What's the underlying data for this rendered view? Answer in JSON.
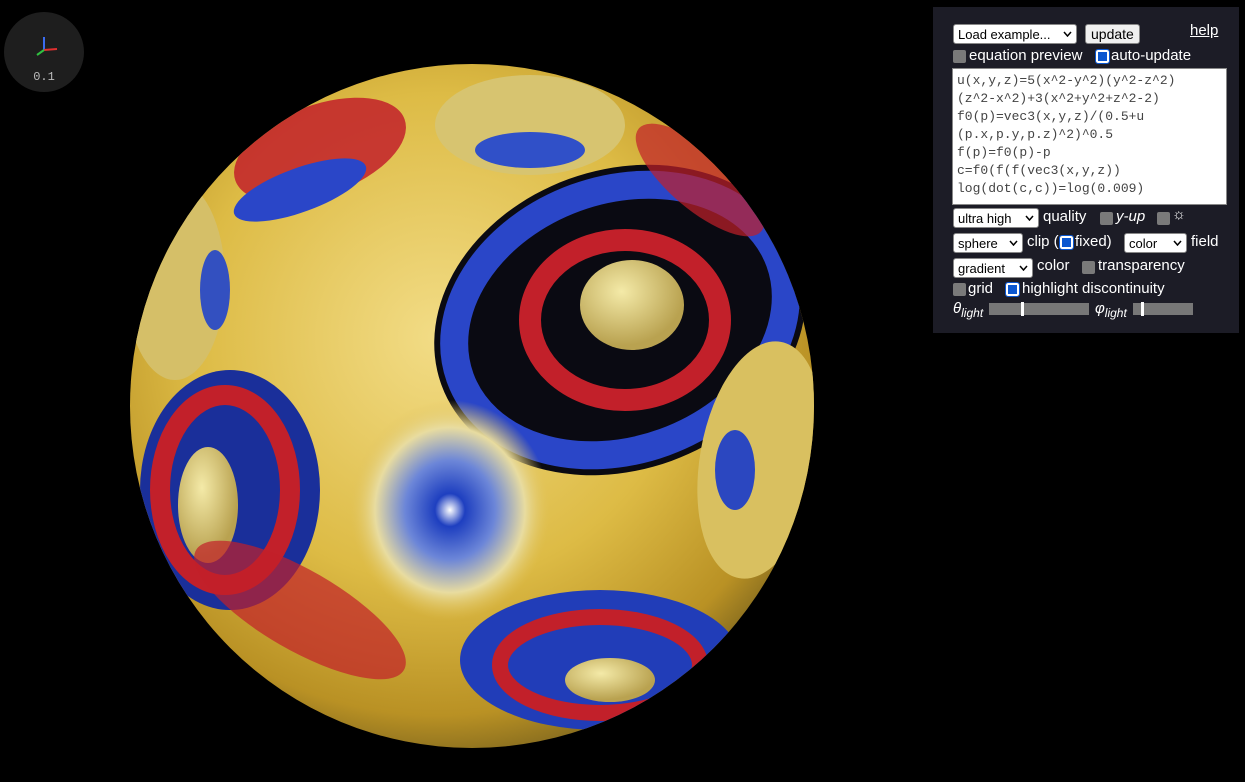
{
  "axis_widget": {
    "scale_label": "0.1"
  },
  "panel": {
    "example_select": "Load example...",
    "update_button": "update",
    "help_link": "help",
    "equation_preview": {
      "label": "equation preview",
      "checked": false
    },
    "auto_update": {
      "label": "auto-update",
      "checked": true
    },
    "equation_lines": [
      "u(x,y,z)=5(x^2-y^2)(y^2-z^2)",
      "(z^2-x^2)+3(x^2+y^2+z^2-2)",
      "f0(p)=vec3(x,y,z)/(0.5+u",
      "(p.x,p.y,p.z)^2)^0.5",
      "f(p)=f0(p)-p",
      "c=f0(f(f(vec3(x,y,z))",
      "log(dot(c,c))=log(0.009)"
    ],
    "quality": {
      "select": "ultra high",
      "label": "quality"
    },
    "y_up": {
      "label": "y-up",
      "checked": false
    },
    "light_toggle": {
      "label": "☼",
      "checked": false
    },
    "clip": {
      "select": "sphere",
      "label_before": "clip (",
      "fixed_label": "fixed)",
      "fixed_checked": true
    },
    "field": {
      "select": "color",
      "label": "field"
    },
    "color": {
      "select": "gradient",
      "label": "color"
    },
    "transparency": {
      "label": "transparency",
      "checked": false
    },
    "grid": {
      "label": "grid",
      "checked": false
    },
    "highlight_discontinuity": {
      "label": "highlight discontinuity",
      "checked": true
    },
    "theta_light": {
      "symbol": "θ",
      "subscript": "light",
      "value": 0.33
    },
    "phi_light": {
      "symbol": "φ",
      "subscript": "light",
      "value": 0.15
    }
  }
}
